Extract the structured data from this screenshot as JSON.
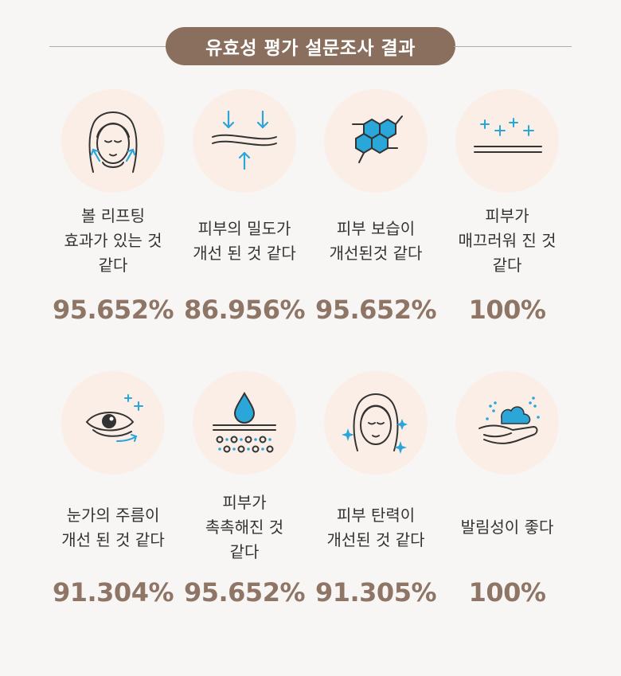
{
  "header": {
    "title": "유효성 평가 설문조사 결과"
  },
  "colors": {
    "accent": "#8a6f5e",
    "circle": "#fbeee6",
    "icon_blue": "#2aa6d9",
    "value": "#8f7566"
  },
  "items": [
    {
      "icon": "face-lifting-icon",
      "label": "볼 리프팅\n효과가 있는 것\n같다",
      "value": "95.652%"
    },
    {
      "icon": "skin-density-icon",
      "label": "피부의 밀도가\n개선 된 것 같다",
      "value": "86.956%"
    },
    {
      "icon": "molecule-moisture-icon",
      "label": "피부 보습이\n개선된것 같다",
      "value": "95.652%"
    },
    {
      "icon": "smooth-skin-sparkle-icon",
      "label": "피부가\n매끄러워 진 것\n같다",
      "value": "100%"
    },
    {
      "icon": "eye-wrinkle-icon",
      "label": "눈가의 주름이\n개선 된 것 같다",
      "value": "91.304%"
    },
    {
      "icon": "water-drop-skin-icon",
      "label": "피부가\n촉촉해진 것\n같다",
      "value": "95.652%"
    },
    {
      "icon": "face-elasticity-sparkle-icon",
      "label": "피부 탄력이\n개선된 것 같다",
      "value": "91.305%"
    },
    {
      "icon": "cream-hand-icon",
      "label": "발림성이 좋다",
      "value": "100%"
    }
  ]
}
